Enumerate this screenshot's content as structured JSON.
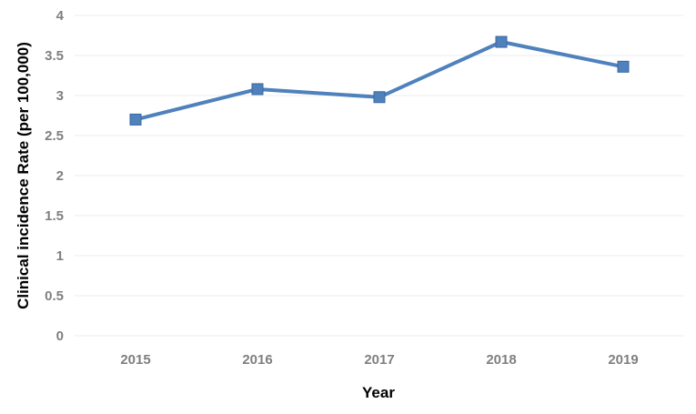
{
  "chart_data": {
    "type": "line",
    "title": "",
    "xlabel": "Year",
    "ylabel": "Clinical incidence Rate (per 100,000)",
    "categories": [
      "2015",
      "2016",
      "2017",
      "2018",
      "2019"
    ],
    "series": [
      {
        "values": [
          2.7,
          3.08,
          2.98,
          3.67,
          3.36
        ]
      }
    ],
    "ylim": [
      0,
      4
    ],
    "yticks": [
      "0",
      "0.5",
      "1",
      "1.5",
      "2",
      "2.5",
      "3",
      "3.5",
      "4"
    ],
    "grid": true,
    "marker": "square",
    "colors": {
      "line": "#4f81bd",
      "marker_fill": "#4f81bd",
      "marker_stroke": "#3a67a0",
      "grid": "#eeeeee",
      "tick_text": "#7f7f7f",
      "axis_title": "#000000"
    }
  }
}
